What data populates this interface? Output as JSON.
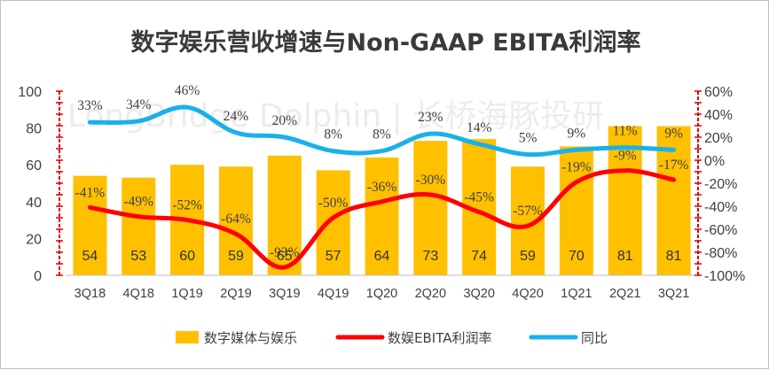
{
  "chart_data": {
    "type": "bar+line",
    "title": "数字娱乐营收增速与Non-GAAP EBITA利润率",
    "categories": [
      "3Q18",
      "4Q18",
      "1Q19",
      "2Q19",
      "3Q19",
      "4Q19",
      "1Q20",
      "2Q20",
      "3Q20",
      "4Q20",
      "1Q21",
      "2Q21",
      "3Q21"
    ],
    "series": [
      {
        "name": "数字媒体与娱乐",
        "type": "bar",
        "axis": "left",
        "color": "#ffc000",
        "values": [
          54,
          53,
          60,
          59,
          65,
          57,
          64,
          73,
          74,
          59,
          70,
          81,
          81
        ],
        "labels": [
          "54",
          "53",
          "60",
          "59",
          "65",
          "57",
          "64",
          "73",
          "74",
          "59",
          "70",
          "81",
          "81"
        ]
      },
      {
        "name": "数娱EBITA利润率",
        "type": "line",
        "axis": "right",
        "color": "#ff0000",
        "values": [
          -41,
          -49,
          -52,
          -64,
          -93,
          -50,
          -36,
          -30,
          -45,
          -57,
          -19,
          -9,
          -17
        ],
        "labels": [
          "-41%",
          "-49%",
          "-52%",
          "-64%",
          "-93%",
          "-50%",
          "-36%",
          "-30%",
          "-45%",
          "-57%",
          "-19%",
          "-9%",
          "-17%"
        ]
      },
      {
        "name": "同比",
        "type": "line",
        "axis": "right",
        "color": "#1ab0ea",
        "values": [
          33,
          34,
          46,
          24,
          20,
          8,
          8,
          23,
          14,
          5,
          9,
          11,
          9
        ],
        "labels": [
          "33%",
          "34%",
          "46%",
          "24%",
          "20%",
          "8%",
          "8%",
          "23%",
          "14%",
          "5%",
          "9%",
          "11%",
          "9%"
        ]
      }
    ],
    "y_left": {
      "min": 0,
      "max": 100,
      "ticks": [
        "0",
        "20",
        "40",
        "60",
        "80",
        "100"
      ],
      "tick_values": [
        0,
        20,
        40,
        60,
        80,
        100
      ]
    },
    "y_right": {
      "min": -100,
      "max": 60,
      "ticks": [
        "-100%",
        "-80%",
        "-60%",
        "-40%",
        "-20%",
        "0%",
        "20%",
        "40%",
        "60%"
      ],
      "tick_values": [
        -100,
        -80,
        -60,
        -40,
        -20,
        0,
        20,
        40,
        60
      ]
    },
    "legend": "bottom",
    "grid": false,
    "watermark": "LongBridge Dolphin | 长桥海豚投研",
    "axis_color": "#e00000"
  }
}
